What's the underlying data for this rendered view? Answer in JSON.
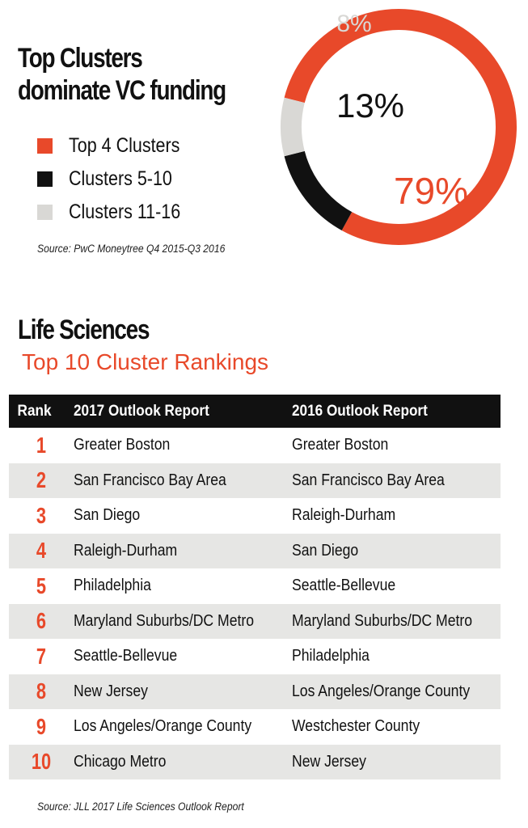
{
  "funding": {
    "title": "Top Clusters dominate VC funding",
    "legend": [
      {
        "label": "Top 4 Clusters",
        "color": "#e8492a"
      },
      {
        "label": "Clusters 5-10",
        "color": "#111111"
      },
      {
        "label": "Clusters 11-16",
        "color": "#d9d8d5"
      }
    ],
    "source": "Source: PwC Moneytree Q4 2015-Q3 2016"
  },
  "chart_data": {
    "type": "pie",
    "style": "donut",
    "categories": [
      "Top 4 Clusters",
      "Clusters 5-10",
      "Clusters 11-16"
    ],
    "values": [
      79,
      13,
      8
    ],
    "labels": [
      "79%",
      "13%",
      "8%"
    ],
    "colors": [
      "#e8492a",
      "#111111",
      "#d9d8d5"
    ],
    "label_colors": [
      "#e8492a",
      "#111111",
      "#d9d8d5"
    ]
  },
  "rankings": {
    "title": "Life Sciences",
    "subtitle": "Top 10 Cluster Rankings",
    "headers": {
      "rank": "Rank",
      "col2017": "2017 Outlook Report",
      "col2016": "2016 Outlook Report"
    },
    "rows": [
      {
        "rank": "1",
        "r2017": "Greater Boston",
        "r2016": "Greater Boston"
      },
      {
        "rank": "2",
        "r2017": "San Francisco Bay Area",
        "r2016": "San Francisco Bay Area"
      },
      {
        "rank": "3",
        "r2017": "San Diego",
        "r2016": "Raleigh-Durham"
      },
      {
        "rank": "4",
        "r2017": "Raleigh-Durham",
        "r2016": "San Diego"
      },
      {
        "rank": "5",
        "r2017": "Philadelphia",
        "r2016": "Seattle-Bellevue"
      },
      {
        "rank": "6",
        "r2017": "Maryland Suburbs/DC Metro",
        "r2016": "Maryland Suburbs/DC Metro"
      },
      {
        "rank": "7",
        "r2017": "Seattle-Bellevue",
        "r2016": "Philadelphia"
      },
      {
        "rank": "8",
        "r2017": "New Jersey",
        "r2016": "Los Angeles/Orange County"
      },
      {
        "rank": "9",
        "r2017": "Los Angeles/Orange County",
        "r2016": "Westchester County"
      },
      {
        "rank": "10",
        "r2017": "Chicago Metro",
        "r2016": "New Jersey"
      }
    ],
    "source": "Source: JLL 2017 Life Sciences Outlook Report"
  }
}
